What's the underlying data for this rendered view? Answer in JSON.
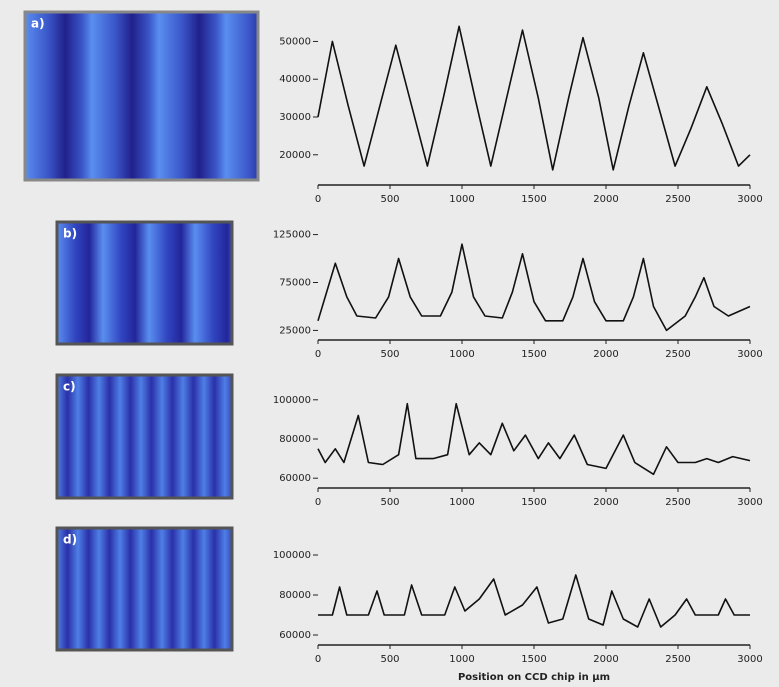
{
  "chart_data": [
    {
      "type": "line",
      "label": "a)",
      "color": "#111111",
      "x": [
        0,
        100,
        210,
        320,
        430,
        540,
        650,
        760,
        870,
        980,
        1090,
        1200,
        1310,
        1420,
        1530,
        1630,
        1740,
        1840,
        1950,
        2050,
        2160,
        2260,
        2370,
        2480,
        2590,
        2700,
        2810,
        2920,
        3000
      ],
      "values": [
        30000,
        50000,
        33000,
        17000,
        33000,
        49000,
        33000,
        17000,
        35000,
        54000,
        35000,
        17000,
        35000,
        53000,
        35000,
        16000,
        35000,
        51000,
        35000,
        16000,
        33000,
        47000,
        32000,
        17000,
        27000,
        38000,
        28000,
        17000,
        20000
      ],
      "xlim": [
        0,
        3000
      ],
      "xticks": [
        0,
        500,
        1000,
        1500,
        2000,
        2500,
        3000
      ],
      "ylim": [
        12000,
        57000
      ],
      "yticks": [
        20000,
        30000,
        40000,
        50000
      ]
    },
    {
      "type": "line",
      "label": "b)",
      "color": "#111111",
      "x": [
        0,
        50,
        120,
        200,
        270,
        400,
        490,
        560,
        640,
        720,
        850,
        930,
        1000,
        1080,
        1160,
        1280,
        1350,
        1420,
        1500,
        1580,
        1700,
        1770,
        1840,
        1920,
        2000,
        2120,
        2190,
        2260,
        2330,
        2420,
        2550,
        2620,
        2680,
        2750,
        2850,
        3000
      ],
      "values": [
        35000,
        60000,
        95000,
        60000,
        40000,
        38000,
        60000,
        100000,
        60000,
        40000,
        40000,
        65000,
        115000,
        60000,
        40000,
        38000,
        65000,
        105000,
        55000,
        35000,
        35000,
        60000,
        100000,
        55000,
        35000,
        35000,
        60000,
        100000,
        50000,
        25000,
        40000,
        60000,
        80000,
        50000,
        40000,
        50000
      ],
      "xlim": [
        0,
        3000
      ],
      "xticks": [
        0,
        500,
        1000,
        1500,
        2000,
        2500,
        3000
      ],
      "ylim": [
        15000,
        135000
      ],
      "yticks": [
        25000,
        75000,
        125000
      ]
    },
    {
      "type": "line",
      "label": "c)",
      "color": "#111111",
      "x": [
        0,
        50,
        120,
        180,
        280,
        350,
        450,
        560,
        620,
        680,
        800,
        900,
        960,
        1050,
        1120,
        1200,
        1280,
        1360,
        1440,
        1530,
        1600,
        1680,
        1780,
        1870,
        2000,
        2120,
        2200,
        2330,
        2420,
        2500,
        2620,
        2700,
        2780,
        2880,
        3000
      ],
      "values": [
        75000,
        68000,
        75000,
        68000,
        92000,
        68000,
        67000,
        72000,
        98000,
        70000,
        70000,
        72000,
        98000,
        72000,
        78000,
        72000,
        88000,
        74000,
        82000,
        70000,
        78000,
        70000,
        82000,
        67000,
        65000,
        82000,
        68000,
        62000,
        76000,
        68000,
        68000,
        70000,
        68000,
        71000,
        69000
      ],
      "xlim": [
        0,
        3000
      ],
      "xticks": [
        0,
        500,
        1000,
        1500,
        2000,
        2500,
        3000
      ],
      "ylim": [
        55000,
        105000
      ],
      "yticks": [
        60000,
        80000,
        100000
      ]
    },
    {
      "type": "line",
      "label": "d)",
      "color": "#111111",
      "xlabel": "Position on CCD chip in µm",
      "x": [
        0,
        100,
        150,
        200,
        350,
        410,
        460,
        600,
        650,
        720,
        880,
        950,
        1020,
        1120,
        1220,
        1300,
        1420,
        1520,
        1600,
        1700,
        1790,
        1880,
        1980,
        2040,
        2120,
        2220,
        2300,
        2380,
        2480,
        2560,
        2620,
        2780,
        2830,
        2890,
        3000
      ],
      "values": [
        70000,
        70000,
        84000,
        70000,
        70000,
        82000,
        70000,
        70000,
        85000,
        70000,
        70000,
        84000,
        72000,
        78000,
        88000,
        70000,
        75000,
        84000,
        66000,
        68000,
        90000,
        68000,
        65000,
        82000,
        68000,
        64000,
        78000,
        64000,
        70000,
        78000,
        70000,
        70000,
        78000,
        70000,
        70000
      ],
      "xlim": [
        0,
        3000
      ],
      "xticks": [
        0,
        500,
        1000,
        1500,
        2000,
        2500,
        3000
      ],
      "ylim": [
        55000,
        105000
      ],
      "yticks": [
        60000,
        80000,
        100000
      ]
    }
  ]
}
